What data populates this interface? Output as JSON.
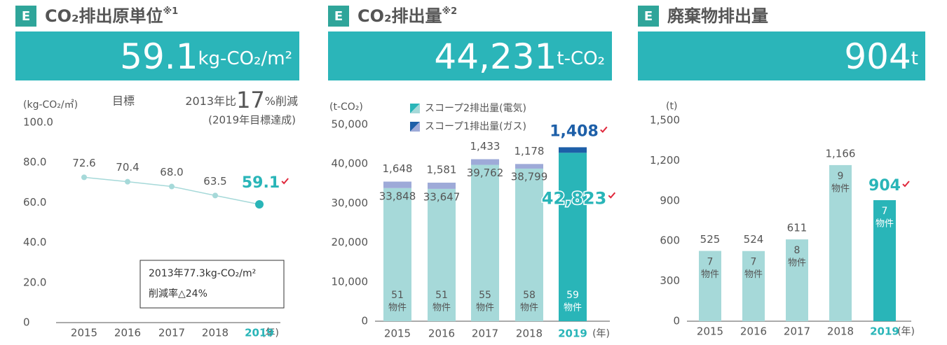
{
  "chart_data": [
    {
      "type": "line",
      "badge": "E",
      "title": "CO₂排出原単位",
      "title_note": "※1",
      "headline": "59.1",
      "headline_unit": "kg-CO₂/m²",
      "y_label": "(kg-CO₂/㎡)",
      "x_unit": "(年)",
      "target": {
        "label": "目標",
        "prefix": "2013年比",
        "value": 17,
        "suffix": "%削減",
        "note": "(2019年目標達成)"
      },
      "annotation": [
        "2013年77.3kg-CO₂/m²",
        "削減率△24%"
      ],
      "categories": [
        "2015",
        "2016",
        "2017",
        "2018",
        "2019"
      ],
      "values": [
        72.6,
        70.4,
        68.0,
        63.5,
        59.1
      ],
      "value_labels": [
        "72.6",
        "70.4",
        "68.0",
        "63.5",
        "59.1"
      ],
      "color": "#a6d9d9",
      "marker_colors": [
        "#a6d9d9",
        "#a6d9d9",
        "#a6d9d9",
        "#a6d9d9",
        "#29b5b8"
      ],
      "text_color": "#555555",
      "category_colors": [
        "#555555",
        "#555555",
        "#555555",
        "#555555",
        "#29b5b8"
      ],
      "ylim": [
        0,
        100
      ],
      "yticks": [
        0,
        {
          "value": 20,
          "label": "20.0"
        },
        {
          "value": 40,
          "label": "40.0"
        },
        {
          "value": 60,
          "label": "60.0"
        },
        {
          "value": 80,
          "label": "80.0"
        },
        {
          "value": 100,
          "label": "100.0"
        }
      ]
    },
    {
      "type": "stacked_bar",
      "badge": "E",
      "title": "CO₂排出量",
      "title_note": "※2",
      "headline": "44,231",
      "headline_unit": "t-CO₂",
      "y_label": "(t-CO₂)",
      "x_unit": "(年)",
      "count_unit": "物件",
      "categories": [
        "2015",
        "2016",
        "2017",
        "2018",
        "2019"
      ],
      "counts": [
        51,
        51,
        55,
        58,
        59
      ],
      "series": [
        {
          "name": "スコープ2排出量(電気)",
          "color": "#a6d9d9",
          "colors": [
            "#a6d9d9",
            "#a6d9d9",
            "#a6d9d9",
            "#a6d9d9",
            "#29b5b8"
          ],
          "values": [
            33848,
            33647,
            39762,
            38799,
            42823
          ],
          "value_labels": [
            "33,848",
            "33,647",
            "39,762",
            "38,799",
            "42,823"
          ]
        },
        {
          "name": "スコープ1排出量(ガス)",
          "color": "#9eaad8",
          "colors": [
            "#9eaad8",
            "#9eaad8",
            "#9eaad8",
            "#9eaad8",
            "#1d5fa8"
          ],
          "values": [
            1648,
            1581,
            1433,
            1178,
            1408
          ],
          "value_labels": [
            "1,648",
            "1,581",
            "1,433",
            "1,178",
            "1,408"
          ]
        }
      ],
      "text_color": "#555555",
      "category_colors": [
        "#555555",
        "#555555",
        "#555555",
        "#555555",
        "#29b5b8"
      ],
      "ylim": [
        0,
        50000
      ],
      "yticks": [
        0,
        {
          "value": 10000,
          "label": "10,000"
        },
        {
          "value": 20000,
          "label": "20,000"
        },
        {
          "value": 30000,
          "label": "30,000"
        },
        {
          "value": 40000,
          "label": "40,000"
        },
        {
          "value": 50000,
          "label": "50,000"
        }
      ]
    },
    {
      "type": "bar",
      "badge": "E",
      "title": "廃棄物排出量",
      "headline": "904",
      "headline_unit": "t",
      "y_label": "(t)",
      "x_unit": "(年)",
      "count_unit": "物件",
      "categories": [
        "2015",
        "2016",
        "2017",
        "2018",
        "2019"
      ],
      "values": [
        525,
        524,
        611,
        1166,
        904
      ],
      "value_labels": [
        "525",
        "524",
        "611",
        "1,166",
        "904"
      ],
      "counts": [
        7,
        7,
        8,
        9,
        7
      ],
      "colors": [
        "#a6d9d9",
        "#a6d9d9",
        "#a6d9d9",
        "#a6d9d9",
        "#29b5b8"
      ],
      "text_color": "#555555",
      "category_colors": [
        "#555555",
        "#555555",
        "#555555",
        "#555555",
        "#29b5b8"
      ],
      "ylim": [
        0,
        1500
      ],
      "yticks": [
        0,
        300,
        600,
        900,
        {
          "value": 1200,
          "label": "1,200"
        },
        {
          "value": 1500,
          "label": "1,500"
        }
      ]
    }
  ]
}
